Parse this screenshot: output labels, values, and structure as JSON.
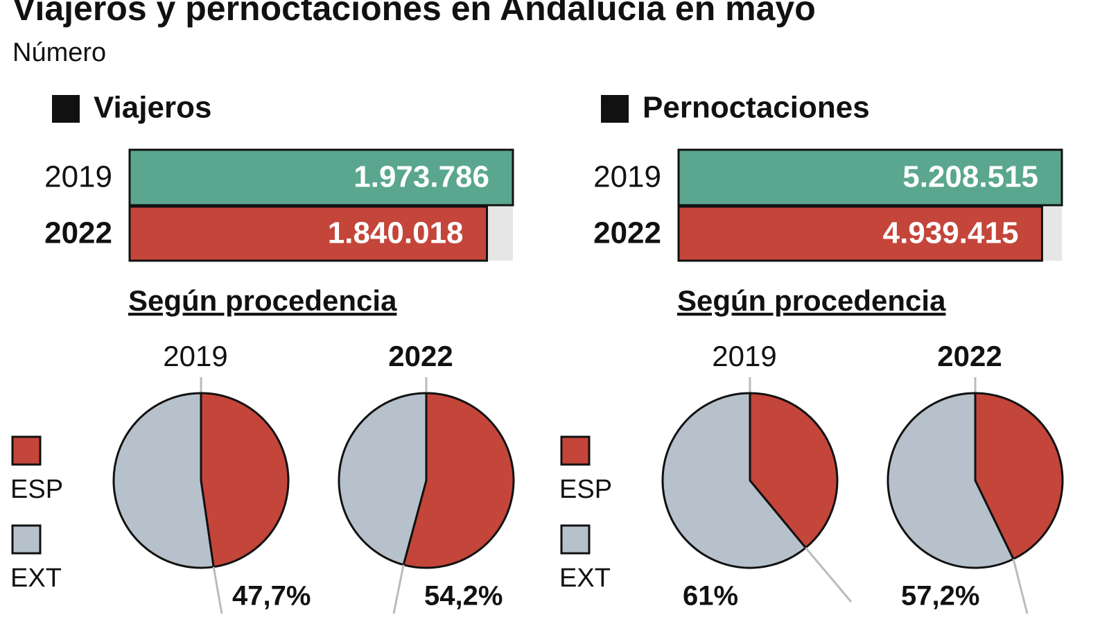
{
  "title": "Viajeros y pernoctaciones en Andalucía en mayo",
  "subtitle": "Número",
  "chart_data": [
    {
      "type": "bar",
      "title": "Viajeros",
      "categories": [
        "2019",
        "2022"
      ],
      "values": [
        1973786,
        1840018
      ],
      "value_labels": [
        "1.973.786",
        "1.840.018"
      ],
      "colors": [
        "#5aa68f",
        "#c4453a"
      ]
    },
    {
      "type": "pie",
      "section_title": "Según procedencia",
      "title": "2019",
      "categories": [
        "ESP",
        "EXT"
      ],
      "values": [
        47.7,
        52.3
      ],
      "value_labels": [
        "47,7%",
        null
      ],
      "colors": [
        "#c4453a",
        "#b6c1cb"
      ]
    },
    {
      "type": "pie",
      "title": "2022",
      "categories": [
        "ESP",
        "EXT"
      ],
      "values": [
        54.2,
        45.8
      ],
      "value_labels": [
        "54,2%",
        null
      ],
      "colors": [
        "#c4453a",
        "#b6c1cb"
      ]
    },
    {
      "type": "bar",
      "title": "Pernoctaciones",
      "categories": [
        "2019",
        "2022"
      ],
      "values": [
        5208515,
        4939415
      ],
      "value_labels": [
        "5.208.515",
        "4.939.415"
      ],
      "colors": [
        "#5aa68f",
        "#c4453a"
      ]
    },
    {
      "type": "pie",
      "section_title": "Según procedencia",
      "title": "2019",
      "categories": [
        "ESP",
        "EXT"
      ],
      "values": [
        39,
        61
      ],
      "value_labels": [
        null,
        "61%"
      ],
      "colors": [
        "#c4453a",
        "#b6c1cb"
      ]
    },
    {
      "type": "pie",
      "title": "2022",
      "categories": [
        "ESP",
        "EXT"
      ],
      "values": [
        42.8,
        57.2
      ],
      "value_labels": [
        null,
        "57,2%"
      ],
      "colors": [
        "#c4453a",
        "#b6c1cb"
      ]
    }
  ]
}
